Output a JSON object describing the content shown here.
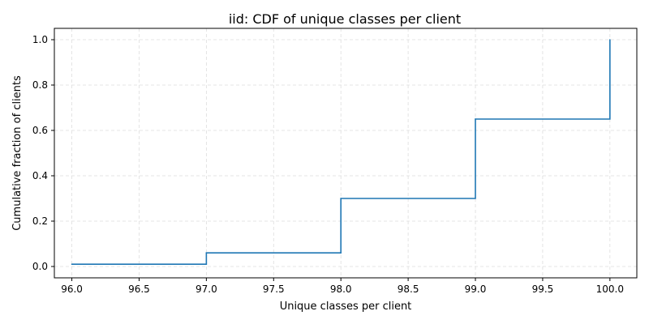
{
  "chart_data": {
    "type": "line",
    "subtype": "step-cdf",
    "title": "iid: CDF of unique classes per client",
    "xlabel": "Unique classes per client",
    "ylabel": "Cumulative fraction of clients",
    "xlim": [
      95.87,
      100.2
    ],
    "ylim": [
      -0.05,
      1.05
    ],
    "x_ticks": [
      96.0,
      96.5,
      97.0,
      97.5,
      98.0,
      98.5,
      99.0,
      99.5,
      100.0
    ],
    "x_tick_labels": [
      "96.0",
      "96.5",
      "97.0",
      "97.5",
      "98.0",
      "98.5",
      "99.0",
      "99.5",
      "100.0"
    ],
    "y_ticks": [
      0.0,
      0.2,
      0.4,
      0.6,
      0.8,
      1.0
    ],
    "y_tick_labels": [
      "0.0",
      "0.2",
      "0.4",
      "0.6",
      "0.8",
      "1.0"
    ],
    "grid": true,
    "series": [
      {
        "color": "#1f77b4",
        "x": [
          96.0,
          97.0,
          98.0,
          99.0,
          100.0
        ],
        "y": [
          0.01,
          0.06,
          0.3,
          0.65,
          1.0
        ]
      }
    ]
  }
}
